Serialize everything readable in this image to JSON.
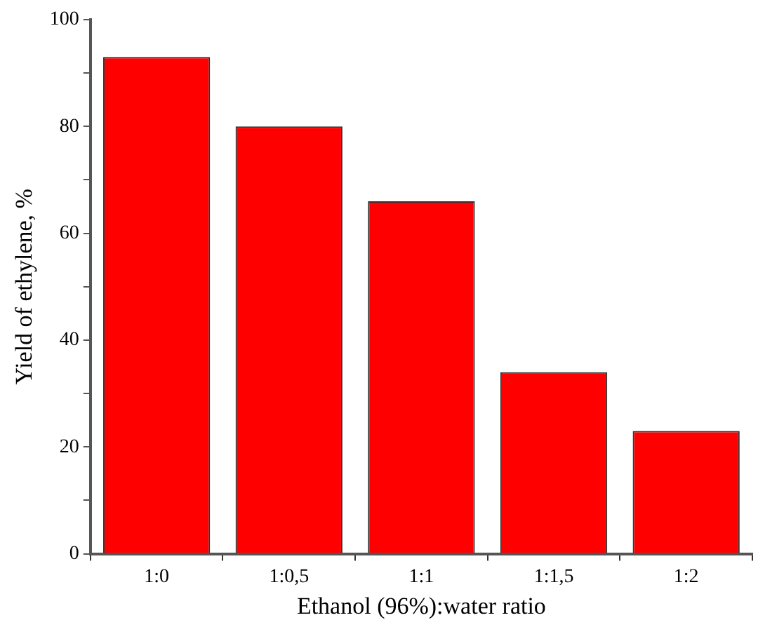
{
  "chart_data": {
    "type": "bar",
    "xlabel": "Ethanol (96%):water ratio",
    "ylabel": "Yield of ethylene, %",
    "categories": [
      "1:0",
      "1:0,5",
      "1:1",
      "1:1,5",
      "1:2"
    ],
    "values": [
      93,
      80,
      66,
      34,
      23
    ],
    "color": "#ff0000",
    "ylim": [
      0,
      100
    ],
    "yticks": [
      0,
      {
        "value": 10,
        "label": null
      },
      20,
      {
        "value": 30,
        "label": null
      },
      40,
      {
        "value": 50,
        "label": null
      },
      60,
      {
        "value": 70,
        "label": null
      },
      80,
      {
        "value": 90,
        "label": null
      },
      100
    ],
    "grid": false,
    "legend": false
  }
}
